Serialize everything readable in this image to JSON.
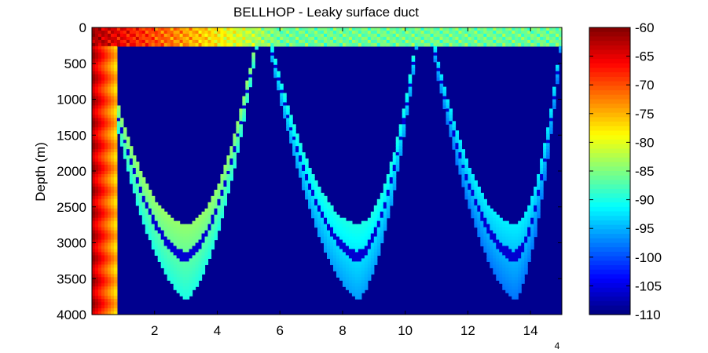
{
  "chart_data": {
    "type": "heatmap",
    "title": "BELLHOP - Leaky surface duct",
    "ylabel": "Depth (m)",
    "xlabel": "",
    "x_exponent_label": "4",
    "xlim": [
      0,
      15
    ],
    "ylim": [
      0,
      4000
    ],
    "y_reversed": true,
    "x_ticks": [
      2,
      4,
      6,
      8,
      10,
      12,
      14
    ],
    "x_tick_labels": [
      "2",
      "4",
      "6",
      "8",
      "10",
      "12",
      "14"
    ],
    "y_ticks": [
      0,
      500,
      1000,
      1500,
      2000,
      2500,
      3000,
      3500,
      4000
    ],
    "y_tick_labels": [
      "0",
      "500",
      "1000",
      "1500",
      "2000",
      "2500",
      "3000",
      "3500",
      "4000"
    ],
    "colorbar": {
      "colormap": "jet",
      "range": [
        -110,
        -60
      ],
      "ticks": [
        -60,
        -65,
        -70,
        -75,
        -80,
        -85,
        -90,
        -95,
        -100,
        -105,
        -110
      ],
      "tick_labels": [
        "-60",
        "-65",
        "-70",
        "-75",
        "-80",
        "-85",
        "-90",
        "-95",
        "-100",
        "-105",
        "-110"
      ]
    },
    "background_level": -110,
    "features": {
      "surface_duct": {
        "depth_max": 280,
        "level_near": -62,
        "level_far": -86
      },
      "convergence_zones": [
        {
          "surface_x": 0.0,
          "vertex_x": 3.0,
          "vertex_depth": 2750,
          "return_x": 5.3,
          "level": -84
        },
        {
          "surface_x": 5.6,
          "vertex_x": 8.5,
          "vertex_depth": 2750,
          "return_x": 10.4,
          "level": -90
        },
        {
          "surface_x": 10.8,
          "vertex_x": 13.5,
          "vertex_depth": 2750,
          "return_x": 15.0,
          "level": -92
        }
      ]
    }
  }
}
